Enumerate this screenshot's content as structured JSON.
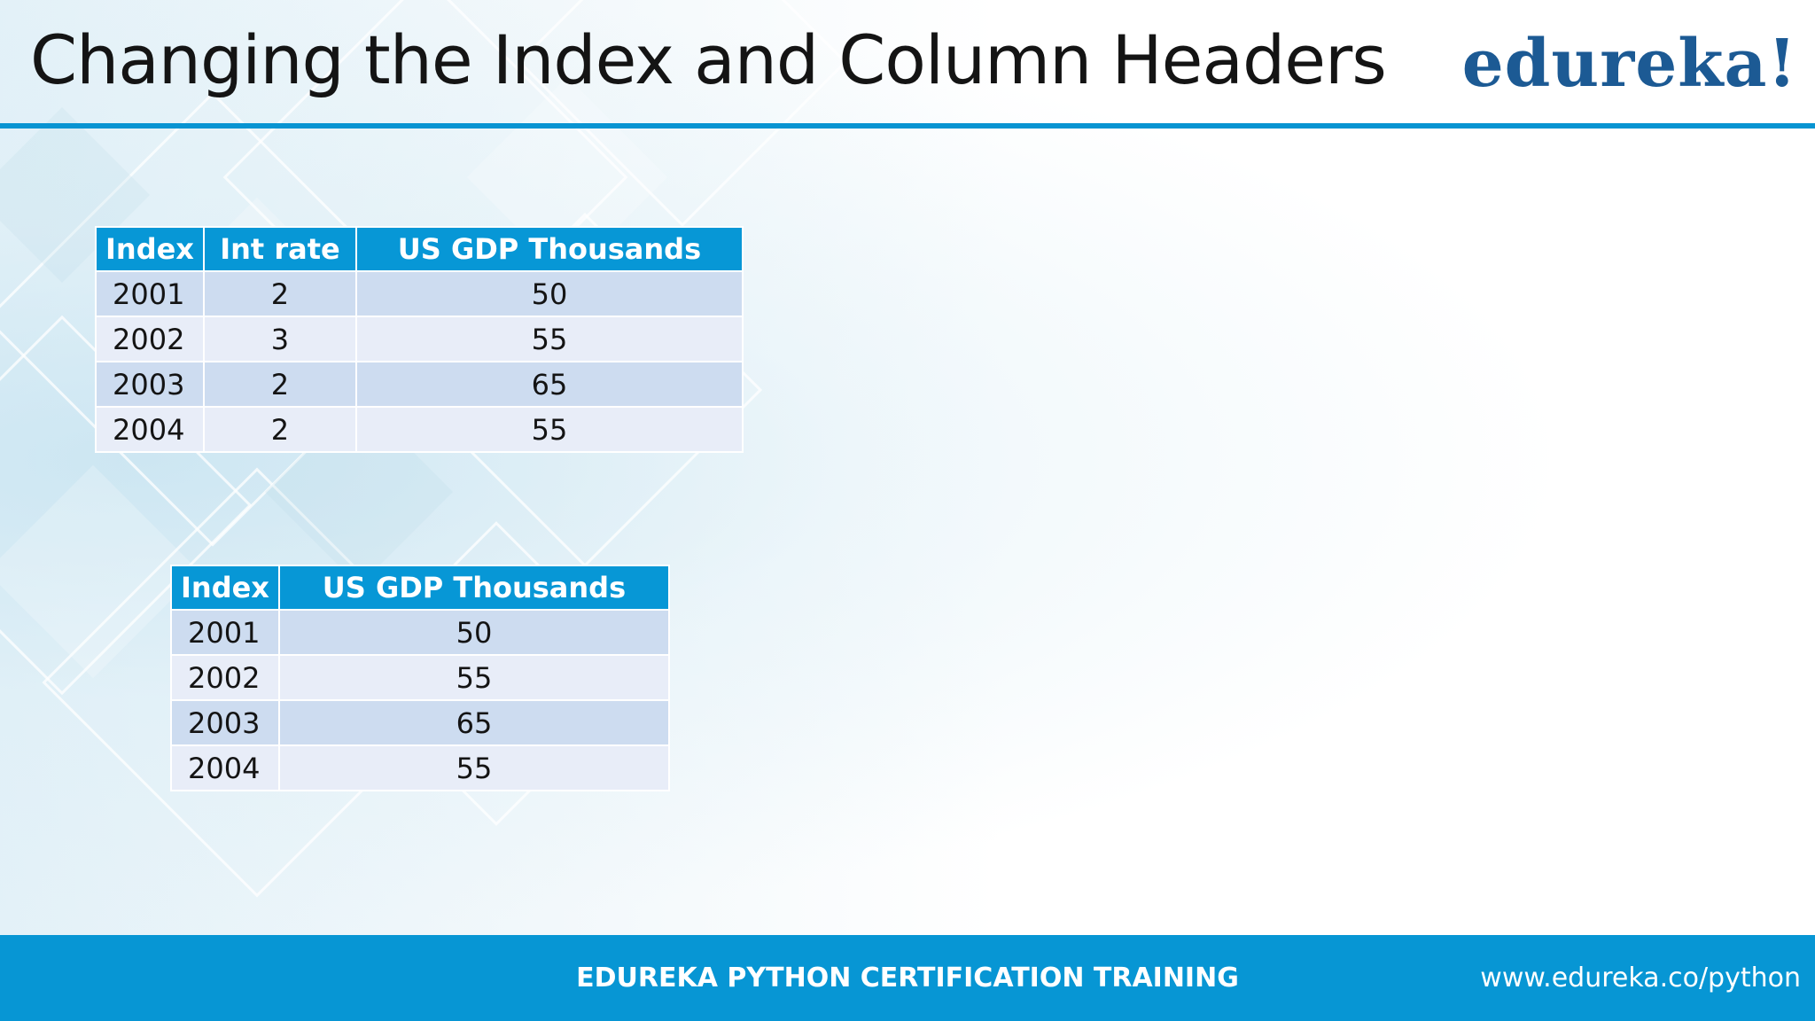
{
  "slide": {
    "title": "Changing the Index and Column Headers",
    "logo": "edureka!"
  },
  "table1": {
    "headers": [
      "Index",
      "Int rate",
      "US GDP Thousands"
    ],
    "rows": [
      [
        "2001",
        "2",
        "50"
      ],
      [
        "2002",
        "3",
        "55"
      ],
      [
        "2003",
        "2",
        "65"
      ],
      [
        "2004",
        "2",
        "55"
      ]
    ]
  },
  "table2": {
    "headers": [
      "Index",
      "US GDP Thousands"
    ],
    "rows": [
      [
        "2001",
        "50"
      ],
      [
        "2002",
        "55"
      ],
      [
        "2003",
        "65"
      ],
      [
        "2004",
        "55"
      ]
    ]
  },
  "footer": {
    "text": "EDUREKA PYTHON CERTIFICATION TRAINING",
    "url": "www.edureka.co/python"
  },
  "colors": {
    "accent": "#0796d4",
    "header_bg": "#0797d6",
    "row_odd": "#cddcf0",
    "row_even": "#e8edf8",
    "logo": "#1c5a94"
  }
}
